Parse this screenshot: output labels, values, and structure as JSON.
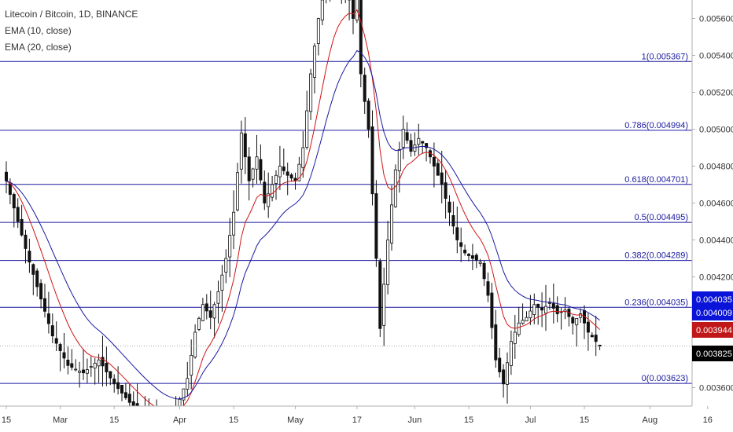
{
  "header": {
    "symbol_line": "Litecoin / Bitcoin, 1D, BINANCE",
    "ema1_label": "EMA (10, close)",
    "ema2_label": "EMA (20, close)"
  },
  "colors": {
    "fib": "#1a1aa0",
    "ema10": "#d01414",
    "ema20": "#1a1aa0",
    "candle": "#111111",
    "price_tag_bg": "#000000",
    "ema10_tag_bg": "#c01818",
    "ema20_tag_bg": "#0a14d8"
  },
  "chart_data": {
    "type": "candlestick",
    "symbol": "Litecoin / Bitcoin",
    "timeframe": "1D",
    "exchange": "BINANCE",
    "ylim": [
      0.0035,
      0.0057
    ],
    "y_ticks": [
      "0.005600",
      "0.005400",
      "0.005200",
      "0.005000",
      "0.004800",
      "0.004600",
      "0.004400",
      "0.004200",
      "0.004000",
      "0.003800",
      "0.003600"
    ],
    "x_ticks": [
      {
        "label": "15",
        "day": 0
      },
      {
        "label": "Mar",
        "day": 14
      },
      {
        "label": "15",
        "day": 28
      },
      {
        "label": "Apr",
        "day": 45
      },
      {
        "label": "15",
        "day": 59
      },
      {
        "label": "May",
        "day": 75
      },
      {
        "label": "17",
        "day": 91
      },
      {
        "label": "Jun",
        "day": 106
      },
      {
        "label": "15",
        "day": 120
      },
      {
        "label": "Jul",
        "day": 136
      },
      {
        "label": "15",
        "day": 150
      },
      {
        "label": "Aug",
        "day": 167
      },
      {
        "label": "16",
        "day": 182
      }
    ],
    "fib_levels": [
      {
        "label": "1(0.005367)",
        "value": 0.005367
      },
      {
        "label": "0.786(0.004994)",
        "value": 0.004994
      },
      {
        "label": "0.618(0.004701)",
        "value": 0.004701
      },
      {
        "label": "0.5(0.004495)",
        "value": 0.004495
      },
      {
        "label": "0.382(0.004289)",
        "value": 0.004289
      },
      {
        "label": "0.236(0.004035)",
        "value": 0.004035
      },
      {
        "label": "0(0.003623)",
        "value": 0.003623
      }
    ],
    "price_tags": [
      {
        "label": "0.004035",
        "value": 0.004035,
        "kind": "ema20"
      },
      {
        "label": "0.004009",
        "value": 0.004009,
        "kind": "ema20"
      },
      {
        "label": "0.003944",
        "value": 0.003944,
        "kind": "ema10"
      },
      {
        "label": "0.003825",
        "value": 0.003825,
        "kind": "price"
      }
    ],
    "last_price": 0.003825,
    "series": [
      {
        "name": "EMA (10, close)"
      },
      {
        "name": "EMA (20, close)"
      }
    ]
  }
}
